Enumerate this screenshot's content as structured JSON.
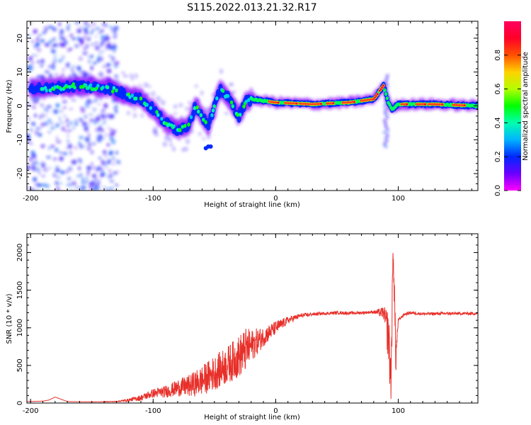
{
  "title": "S115.2022.013.21.32.R17",
  "chart_data": [
    {
      "type": "heatmap",
      "xlabel": "Height of straight line (km)",
      "ylabel": "Frequency (Hz)",
      "xlim": [
        -203,
        165
      ],
      "ylim": [
        -25,
        25
      ],
      "xticks": [
        "-200",
        "-100",
        "0",
        "100"
      ],
      "yticks": [
        "-20",
        "-10",
        "0",
        "10",
        "20"
      ],
      "xtick_values": [
        -200,
        -100,
        0,
        100
      ],
      "ytick_values": [
        -20,
        -10,
        0,
        10,
        20
      ],
      "colorbar": {
        "label": "Normalized spectral amplitude",
        "range": [
          0,
          1
        ],
        "ticks": [
          "0.0",
          "0.2",
          "0.4",
          "0.6",
          "0.8"
        ],
        "tick_values": [
          0.0,
          0.2,
          0.4,
          0.6,
          0.8
        ],
        "colormap": [
          "#ff00ff",
          "#6a00ff",
          "#0028ff",
          "#00b4ff",
          "#00ffb0",
          "#00ff00",
          "#b4ff00",
          "#ffd200",
          "#ff5000",
          "#ff0028",
          "#ff0060"
        ]
      },
      "ridge": [
        {
          "x": -200,
          "y": 5.5
        },
        {
          "x": -185,
          "y": 5
        },
        {
          "x": -175,
          "y": 5.5
        },
        {
          "x": -160,
          "y": 6
        },
        {
          "x": -150,
          "y": 5.5
        },
        {
          "x": -140,
          "y": 5.5
        },
        {
          "x": -130,
          "y": 4.5
        },
        {
          "x": -120,
          "y": 3
        },
        {
          "x": -110,
          "y": 2
        },
        {
          "x": -100,
          "y": -1
        },
        {
          "x": -90,
          "y": -5
        },
        {
          "x": -80,
          "y": -7
        },
        {
          "x": -72,
          "y": -6
        },
        {
          "x": -65,
          "y": 0
        },
        {
          "x": -60,
          "y": -3
        },
        {
          "x": -55,
          "y": -6
        },
        {
          "x": -45,
          "y": 5
        },
        {
          "x": -38,
          "y": 2
        },
        {
          "x": -30,
          "y": -3
        },
        {
          "x": -25,
          "y": 1
        },
        {
          "x": -20,
          "y": 2
        },
        {
          "x": 0,
          "y": 1
        },
        {
          "x": 30,
          "y": 0.5
        },
        {
          "x": 60,
          "y": 1
        },
        {
          "x": 80,
          "y": 2
        },
        {
          "x": 88,
          "y": 6
        },
        {
          "x": 92,
          "y": 1
        },
        {
          "x": 95,
          "y": -1
        },
        {
          "x": 100,
          "y": 0.5
        },
        {
          "x": 130,
          "y": 0.5
        },
        {
          "x": 165,
          "y": 0
        }
      ]
    },
    {
      "type": "line",
      "xlabel": "Height of straight line (km)",
      "ylabel": "SNR (10 * v/v)",
      "xlim": [
        -203,
        165
      ],
      "ylim": [
        0,
        2250
      ],
      "xticks": [
        "-200",
        "-100",
        "0",
        "100"
      ],
      "yticks": [
        "0",
        "500",
        "1000",
        "1500",
        "2000"
      ],
      "xtick_values": [
        -200,
        -100,
        0,
        100
      ],
      "ytick_values": [
        0,
        500,
        1000,
        1500,
        2000
      ],
      "series": [
        {
          "color": "#e8302a",
          "x": [
            -203,
            -190,
            -185,
            -180,
            -170,
            -150,
            -130,
            -120,
            -110,
            -100,
            -90,
            -80,
            -70,
            -60,
            -50,
            -40,
            -30,
            -25,
            -20,
            -10,
            0,
            10,
            20,
            30,
            40,
            50,
            60,
            70,
            80,
            88,
            92,
            94,
            96,
            98,
            100,
            105,
            110,
            120,
            140,
            165
          ],
          "y": [
            20,
            25,
            40,
            80,
            20,
            15,
            20,
            40,
            70,
            130,
            150,
            200,
            230,
            300,
            400,
            500,
            620,
            700,
            760,
            880,
            1000,
            1100,
            1160,
            1180,
            1190,
            1200,
            1195,
            1200,
            1210,
            1200,
            900,
            300,
            2100,
            600,
            1100,
            1180,
            1200,
            1185,
            1190,
            1190
          ],
          "noise": [
            0,
            0,
            0,
            0,
            0,
            0,
            5,
            20,
            40,
            60,
            80,
            110,
            150,
            200,
            230,
            250,
            280,
            300,
            220,
            130,
            90,
            50,
            30,
            20,
            20,
            20,
            20,
            20,
            20,
            80,
            350,
            400,
            300,
            250,
            20,
            20,
            20,
            20,
            20,
            20
          ]
        }
      ]
    }
  ]
}
